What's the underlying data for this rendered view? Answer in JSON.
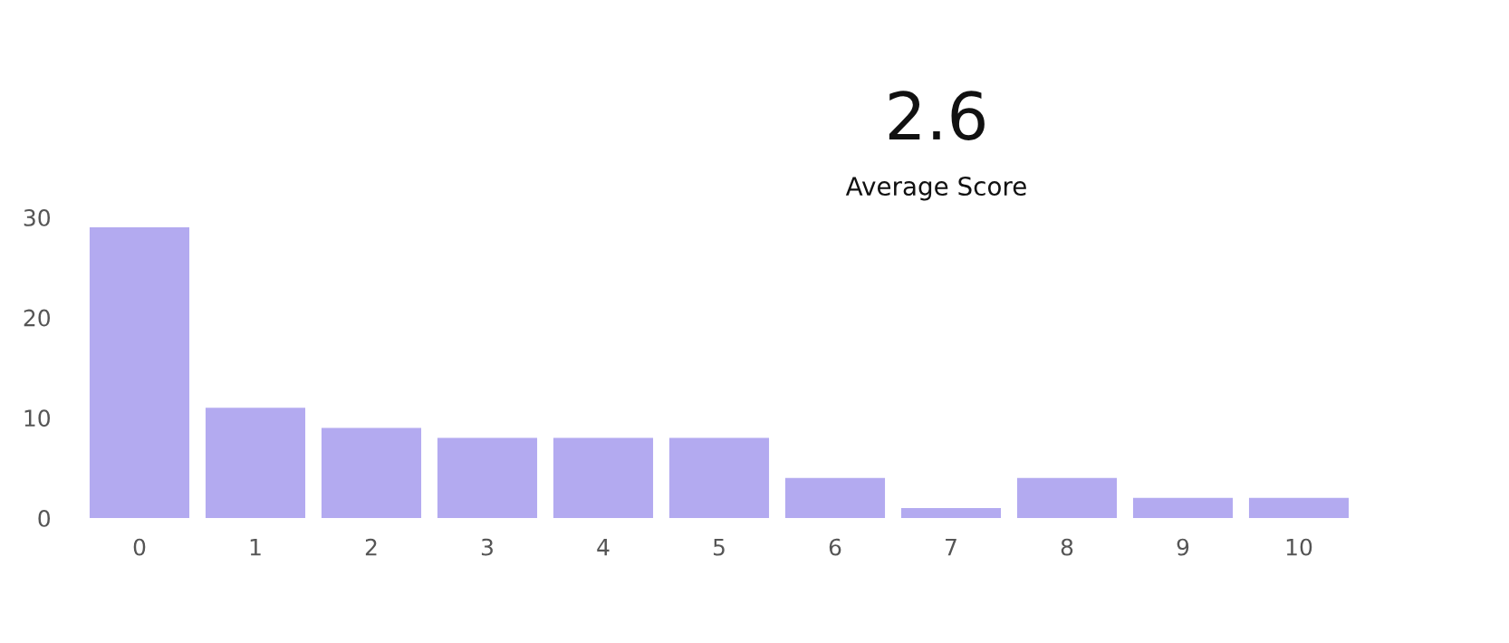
{
  "chart_data": {
    "type": "bar",
    "categories": [
      "0",
      "1",
      "2",
      "3",
      "4",
      "5",
      "6",
      "7",
      "8",
      "9",
      "10"
    ],
    "values": [
      29,
      11,
      9,
      8,
      8,
      8,
      4,
      1,
      4,
      2,
      2
    ],
    "color": "#b3aaf0",
    "ylim": [
      0,
      30
    ],
    "yticks": [
      0,
      10,
      20,
      30
    ],
    "grid": false,
    "annotations": [
      "2.6",
      "Average Score"
    ]
  }
}
